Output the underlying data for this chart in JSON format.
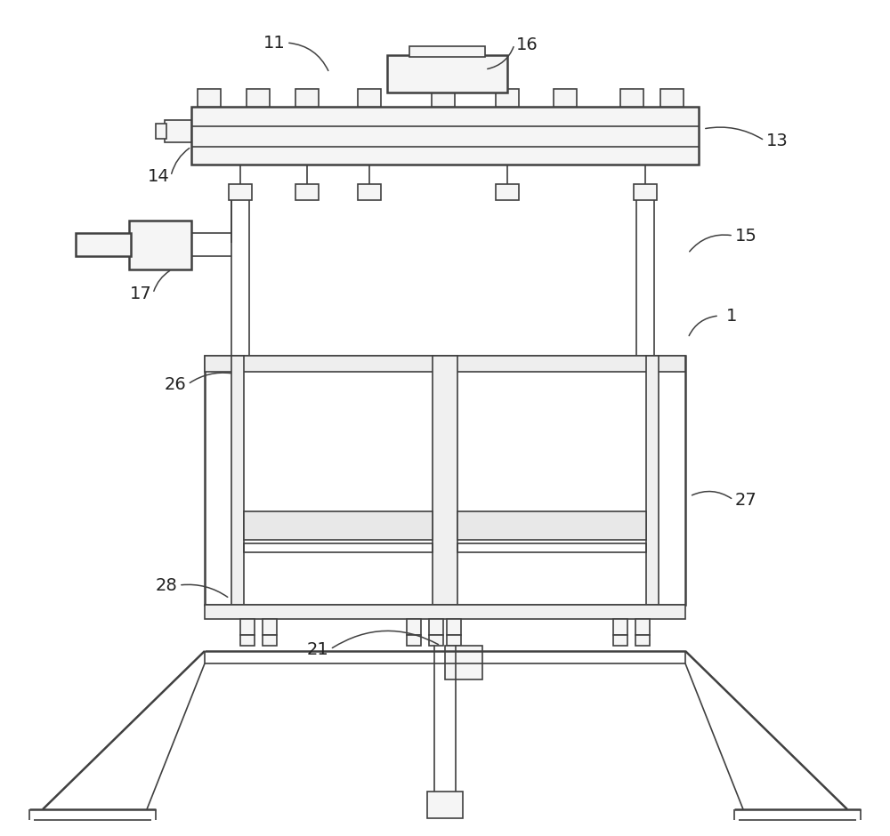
{
  "bg_color": "#ffffff",
  "line_color": "#404040",
  "lw": 1.8,
  "lw_thin": 1.2,
  "label_color": "#222222",
  "label_fs": 14
}
